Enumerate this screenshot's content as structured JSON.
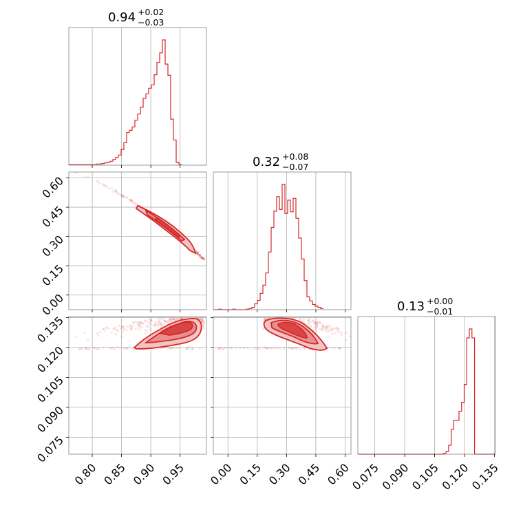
{
  "chart_data": {
    "type": "corner",
    "color": "#d62728",
    "parameters": [
      {
        "summary_value": "0.94",
        "plus": "+0.02",
        "minus": "−0.03",
        "range": [
          0.76,
          0.995
        ],
        "ticks": [
          0.8,
          0.85,
          0.9,
          0.95
        ],
        "tick_labels": [
          "0.80",
          "0.85",
          "0.90",
          "0.95"
        ]
      },
      {
        "summary_value": "0.32",
        "plus": "+0.08",
        "minus": "−0.07",
        "range": [
          -0.075,
          0.63
        ],
        "ticks": [
          0.0,
          0.15,
          0.3,
          0.45,
          0.6
        ],
        "tick_labels": [
          "0.00",
          "0.15",
          "0.30",
          "0.45",
          "0.60"
        ]
      },
      {
        "summary_value": "0.13",
        "plus": "+0.00",
        "minus": "−0.01",
        "range": [
          0.0665,
          0.1355
        ],
        "ticks": [
          0.075,
          0.09,
          0.105,
          0.12,
          0.135
        ],
        "tick_labels": [
          "0.075",
          "0.090",
          "0.105",
          "0.120",
          "0.135"
        ]
      }
    ],
    "histograms": [
      {
        "param": 0,
        "bin_edges_start": 0.76,
        "bin_width": 0.0047,
        "counts": [
          1,
          1,
          1,
          1,
          1,
          1,
          1,
          1,
          1,
          1,
          2,
          2,
          3,
          4,
          5,
          7,
          10,
          14,
          18,
          28,
          40,
          58,
          62,
          68,
          80,
          91,
          103,
          119,
          127,
          137,
          143,
          161,
          183,
          200,
          223,
          180,
          160,
          82,
          45,
          5,
          1
        ]
      },
      {
        "param": 1,
        "bin_edges_start": -0.075,
        "bin_width": 0.0141,
        "counts": [
          0,
          0,
          1,
          0,
          0,
          0,
          0,
          1,
          0,
          0,
          0,
          0,
          1,
          2,
          4,
          10,
          16,
          28,
          42,
          63,
          99,
          141,
          169,
          194,
          172,
          215,
          165,
          188,
          168,
          191,
          157,
          123,
          87,
          50,
          22,
          15,
          9,
          6,
          4,
          2
        ]
      },
      {
        "param": 2,
        "bin_edges_start": 0.0665,
        "bin_width": 0.0013,
        "counts": [
          0,
          0,
          0,
          0,
          0,
          0,
          0,
          0,
          0,
          0,
          0,
          0,
          0,
          0,
          0,
          0,
          0,
          0,
          0,
          0,
          0,
          0,
          0,
          0,
          0,
          0,
          0,
          0,
          0,
          0,
          0,
          0,
          0,
          1,
          3,
          10,
          28,
          38,
          38,
          48,
          58,
          78,
          130,
          140,
          130,
          0,
          0,
          0,
          0,
          0,
          0,
          0,
          0
        ]
      }
    ]
  }
}
